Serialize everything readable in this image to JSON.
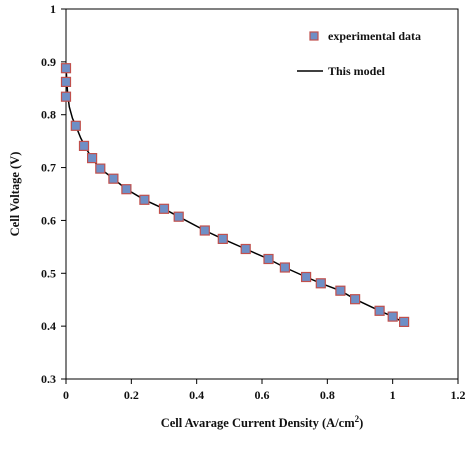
{
  "chart_data": {
    "type": "scatter",
    "title": "",
    "xlabel": "Cell Avarage  Current Density (A/cm",
    "xlabel_superscript": "2",
    "xlabel_suffix": ")",
    "ylabel": "Cell Voltage  (V)",
    "xlim": [
      0,
      1.2
    ],
    "ylim": [
      0.3,
      1
    ],
    "x_ticks": [
      "0",
      "0.2",
      "0.4",
      "0.6",
      "0.8",
      "1",
      "1.2"
    ],
    "y_ticks": [
      "0.3",
      "0.4",
      "0.5",
      "0.6",
      "0.7",
      "0.8",
      "0.9",
      "1"
    ],
    "grid": false,
    "legend_position": "top-right",
    "colors": {
      "marker_fill": "#6f8fc6",
      "marker_edge": "#c0504d",
      "model_line": "#000000"
    },
    "series": [
      {
        "name": "experimental data",
        "kind": "markers",
        "x": [
          0.0,
          0.0,
          0.0,
          0.03,
          0.055,
          0.08,
          0.105,
          0.145,
          0.185,
          0.24,
          0.3,
          0.345,
          0.425,
          0.48,
          0.55,
          0.62,
          0.67,
          0.735,
          0.78,
          0.84,
          0.885,
          0.96,
          1.0,
          1.035
        ],
        "y": [
          0.888,
          0.862,
          0.834,
          0.779,
          0.741,
          0.718,
          0.698,
          0.679,
          0.659,
          0.639,
          0.622,
          0.607,
          0.581,
          0.565,
          0.546,
          0.527,
          0.511,
          0.493,
          0.481,
          0.467,
          0.451,
          0.429,
          0.418,
          0.408
        ]
      },
      {
        "name": "This model",
        "kind": "line",
        "x": [
          0.0,
          0.005,
          0.01,
          0.02,
          0.03,
          0.045,
          0.06,
          0.08,
          0.105,
          0.145,
          0.185,
          0.24,
          0.3,
          0.345,
          0.425,
          0.48,
          0.55,
          0.62,
          0.67,
          0.735,
          0.78,
          0.84,
          0.885,
          0.96,
          1.0,
          1.04
        ],
        "y": [
          0.89,
          0.84,
          0.815,
          0.793,
          0.779,
          0.756,
          0.738,
          0.717,
          0.698,
          0.679,
          0.659,
          0.639,
          0.622,
          0.607,
          0.581,
          0.565,
          0.546,
          0.527,
          0.511,
          0.493,
          0.481,
          0.467,
          0.451,
          0.429,
          0.418,
          0.405
        ]
      }
    ]
  }
}
